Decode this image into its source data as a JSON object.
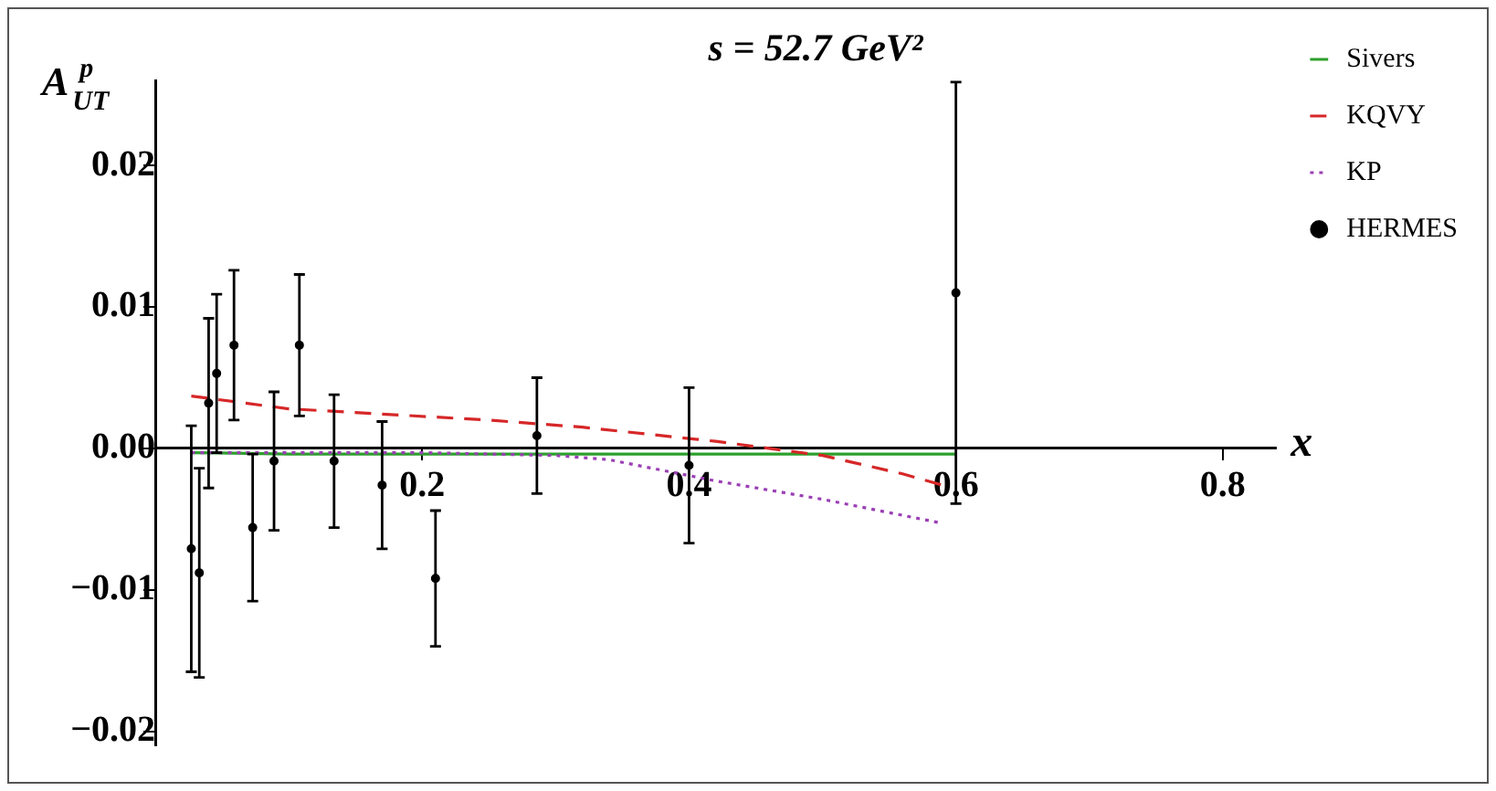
{
  "chart_data": {
    "type": "line",
    "title": "s = 52.7 GeV²",
    "xlabel": "x",
    "ylabel": "A$^{p}$$_{UT}$",
    "xlim": [
      0,
      0.84
    ],
    "ylim": [
      -0.021,
      0.026
    ],
    "xticks": [
      0.2,
      0.4,
      0.6,
      0.8
    ],
    "yticks": [
      {
        "value": -0.02,
        "label": "−0.02"
      },
      {
        "value": -0.01,
        "label": "−0.01"
      },
      {
        "value": 0,
        "label": "0.00"
      },
      {
        "value": 0.01,
        "label": "0.01"
      },
      {
        "value": 0.02,
        "label": "0.02"
      }
    ],
    "legend": "top right",
    "series": [
      {
        "name": "Sivers",
        "color": "#2ca02c",
        "line_style": "solid",
        "x": [
          0.027,
          0.1,
          0.2,
          0.3,
          0.4,
          0.5,
          0.6
        ],
        "values": [
          -0.0003,
          -0.0004,
          -0.0004,
          -0.0004,
          -0.0004,
          -0.0004,
          -0.0004
        ]
      },
      {
        "name": "KQVY",
        "color": "#d62728",
        "line_style": "dashed",
        "x": [
          0.027,
          0.1,
          0.25,
          0.32,
          0.42,
          0.5,
          0.56,
          0.59
        ],
        "values": [
          0.0037,
          0.0028,
          0.002,
          0.0015,
          0.0005,
          -0.0005,
          -0.0018,
          -0.0026
        ]
      },
      {
        "name": "KP",
        "color": "#9b3fb5",
        "line_style": "dotted",
        "x": [
          0.027,
          0.1,
          0.2,
          0.3,
          0.34,
          0.42,
          0.5,
          0.59
        ],
        "values": [
          -0.0003,
          -0.0003,
          -0.0003,
          -0.0005,
          -0.0008,
          -0.0023,
          -0.0036,
          -0.0053
        ]
      },
      {
        "name": "HERMES",
        "type": "scatter",
        "color": "#000000",
        "marker": "circle",
        "x": [
          0.027,
          0.033,
          0.04,
          0.046,
          0.059,
          0.073,
          0.089,
          0.108,
          0.134,
          0.17,
          0.21,
          0.286,
          0.4,
          0.6
        ],
        "values": [
          -0.0071,
          -0.0088,
          0.0032,
          0.0053,
          0.0073,
          -0.0056,
          -0.0009,
          0.0073,
          -0.0009,
          -0.0026,
          -0.0092,
          0.0009,
          -0.0012,
          0.011
        ],
        "errors": [
          0.0087,
          0.0074,
          0.006,
          0.0056,
          0.0053,
          0.0052,
          0.0049,
          0.005,
          0.0047,
          0.0045,
          0.0048,
          0.0041,
          0.0055,
          0.0149
        ]
      }
    ]
  }
}
